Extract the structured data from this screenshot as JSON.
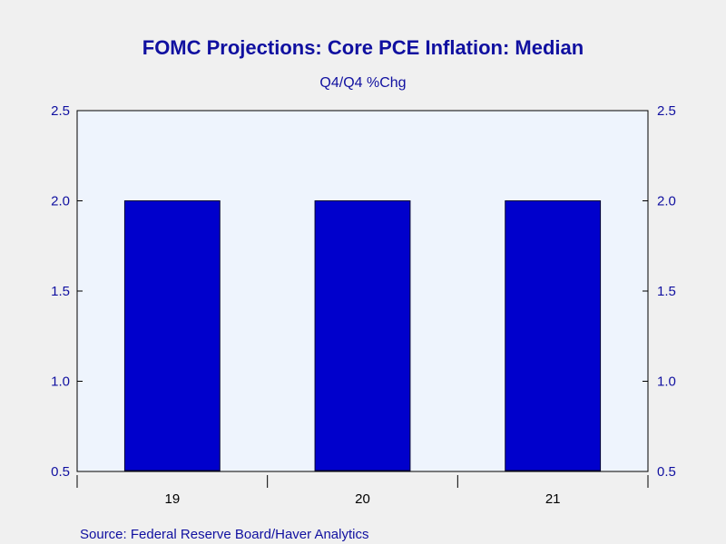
{
  "colors": {
    "background": "#f0f0f0",
    "plot_background": "#eef4fd",
    "bar_fill": "#0000cc",
    "bar_stroke": "#000033",
    "text": "#1010a0",
    "axis": "#000000"
  },
  "source": "Source:  Federal Reserve Board/Haver Analytics",
  "chart_data": {
    "type": "bar",
    "title": "FOMC Projections: Core PCE Inflation: Median",
    "subtitle": "Q4/Q4 %Chg",
    "xlabel": "",
    "ylabel": "",
    "categories": [
      "19",
      "20",
      "21"
    ],
    "values": [
      2.0,
      2.0,
      2.0
    ],
    "ylim": [
      0.5,
      2.5
    ],
    "yticks": [
      0.5,
      1.0,
      1.5,
      2.0,
      2.5
    ],
    "ytick_labels": [
      "0.5",
      "1.0",
      "1.5",
      "2.0",
      "2.5"
    ],
    "dual_y_axis": true,
    "grid": false,
    "legend": "none"
  }
}
